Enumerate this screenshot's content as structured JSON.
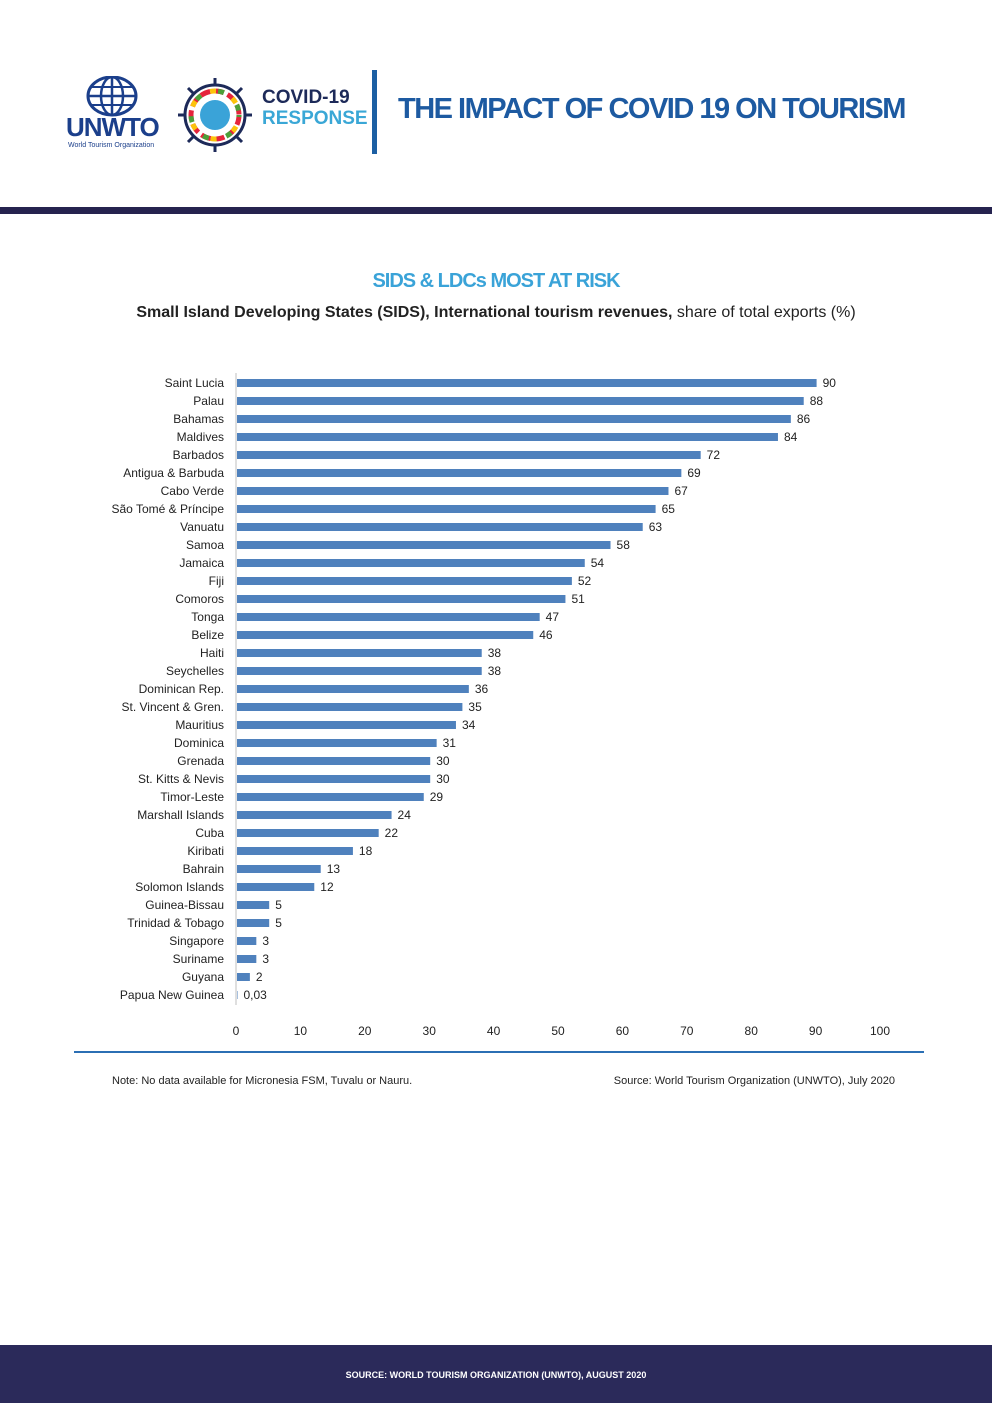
{
  "header": {
    "org_short": "UNWTO",
    "org_full": "World Tourism Organization",
    "badge_line1": "COVID-19",
    "badge_line2": "RESPONSE",
    "page_title": "THE IMPACT OF COVID 19 ON TOURISM"
  },
  "colors": {
    "navy": "#26234f",
    "blue": "#1d5aa1",
    "bar": "#4f81bd",
    "accent": "#3aa3d8"
  },
  "chart_data": {
    "type": "bar",
    "orientation": "horizontal",
    "title": "SIDS & LDCs MOST AT RISK",
    "subtitle_bold": "Small Island Developing States (SIDS), International tourism revenues,",
    "subtitle_rest": " share of total exports (%)",
    "categories": [
      "Saint Lucia",
      "Palau",
      "Bahamas",
      "Maldives",
      "Barbados",
      "Antigua & Barbuda",
      "Cabo Verde",
      "São Tomé & Príncipe",
      "Vanuatu",
      "Samoa",
      "Jamaica",
      "Fiji",
      "Comoros",
      "Tonga",
      "Belize",
      "Haiti",
      "Seychelles",
      "Dominican Rep.",
      "St. Vincent & Gren.",
      "Mauritius",
      "Dominica",
      "Grenada",
      "St. Kitts & Nevis",
      "Timor-Leste",
      "Marshall Islands",
      "Cuba",
      "Kiribati",
      "Bahrain",
      "Solomon Islands",
      "Guinea-Bissau",
      "Trinidad & Tobago",
      "Singapore",
      "Suriname",
      "Guyana",
      "Papua New Guinea"
    ],
    "values": [
      90,
      88,
      86,
      84,
      72,
      69,
      67,
      65,
      63,
      58,
      54,
      52,
      51,
      47,
      46,
      38,
      38,
      36,
      35,
      34,
      31,
      30,
      30,
      29,
      24,
      22,
      18,
      13,
      12,
      5,
      5,
      3,
      3,
      2,
      0.03
    ],
    "value_labels": [
      "90",
      "88",
      "86",
      "84",
      "72",
      "69",
      "67",
      "65",
      "63",
      "58",
      "54",
      "52",
      "51",
      "47",
      "46",
      "38",
      "38",
      "36",
      "35",
      "34",
      "31",
      "30",
      "30",
      "29",
      "24",
      "22",
      "18",
      "13",
      "12",
      "5",
      "5",
      "3",
      "3",
      "2",
      "0,03"
    ],
    "xlim": [
      0,
      100
    ],
    "xticks": [
      0,
      10,
      20,
      30,
      40,
      50,
      60,
      70,
      80,
      90,
      100
    ],
    "xlabel": "",
    "ylabel": "",
    "grid": false
  },
  "notes": {
    "note": "Note: No data available for Micronesia FSM, Tuvalu or Nauru.",
    "source": "Source: World Tourism Organization (UNWTO), July 2020"
  },
  "footer": {
    "text": "SOURCE: WORLD TOURISM ORGANIZATION (UNWTO), AUGUST 2020"
  }
}
